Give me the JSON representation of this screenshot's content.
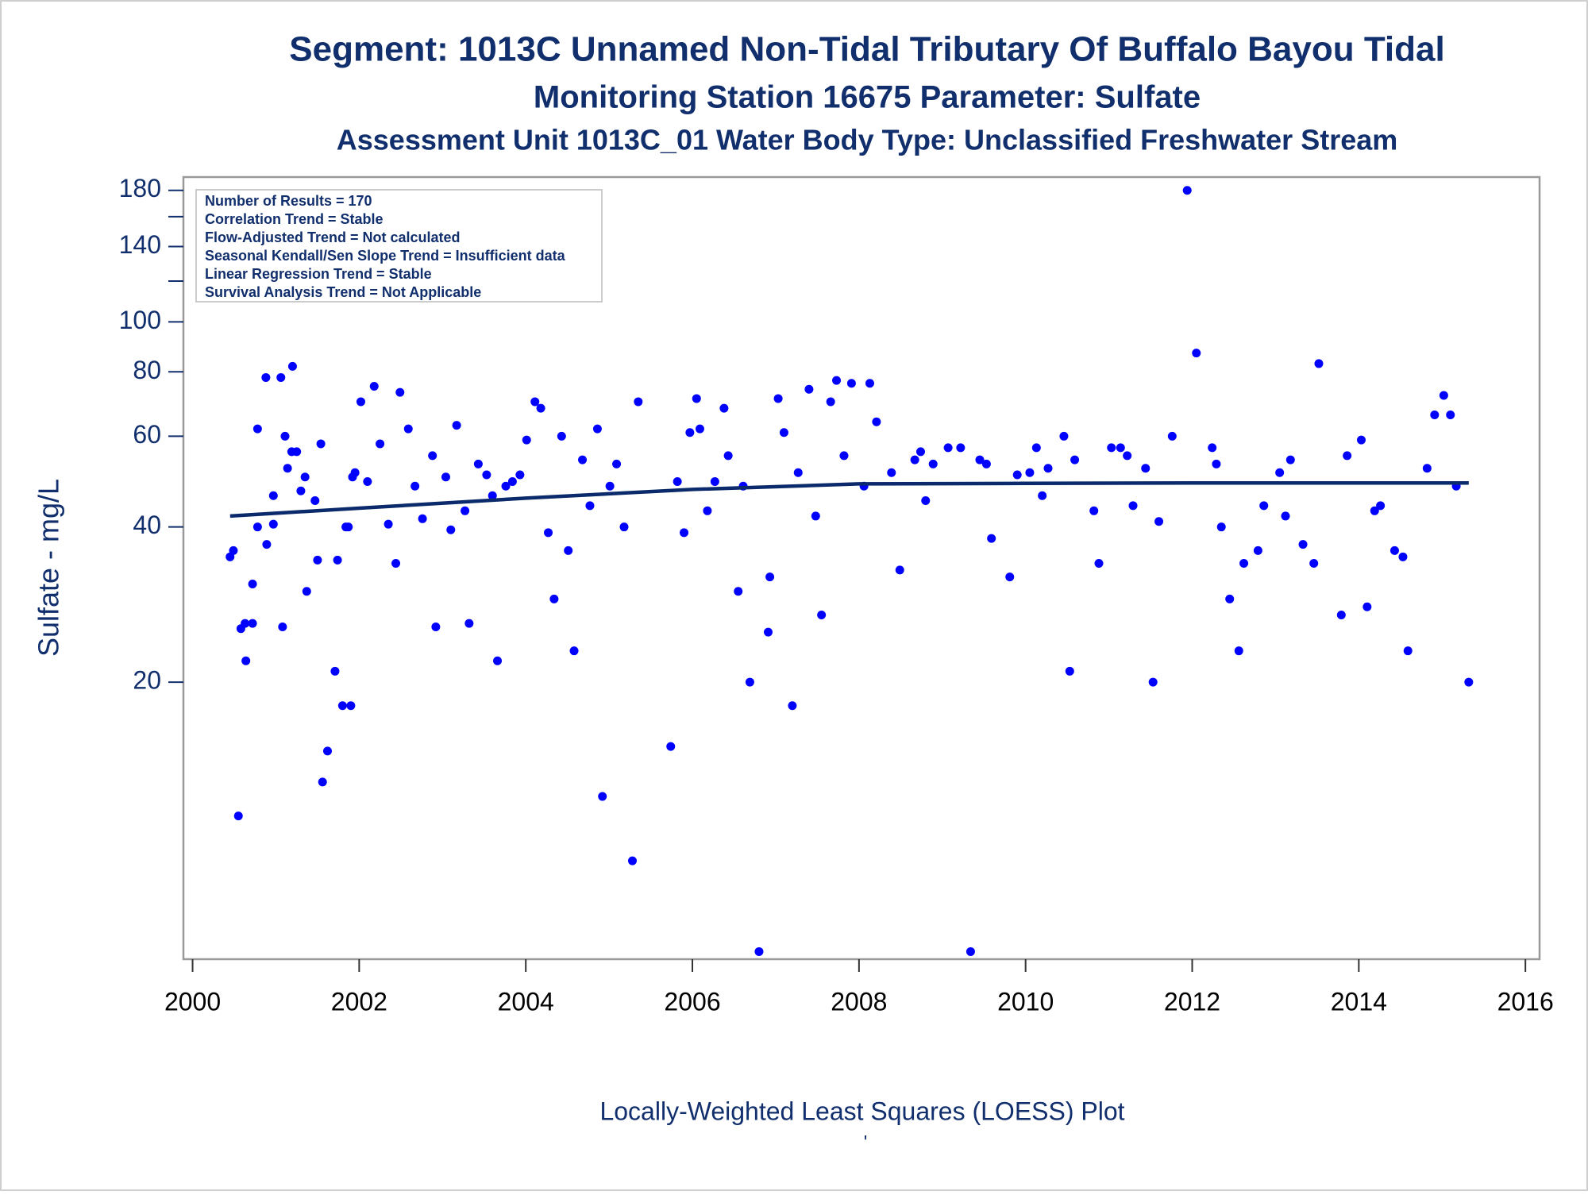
{
  "chart_data": {
    "type": "scatter",
    "title": "Segment: 1013C  Unnamed Non-Tidal Tributary Of Buffalo Bayou Tidal",
    "subtitle": "Monitoring Station 16675 Parameter: Sulfate",
    "subtitle2": "Assessment Unit 1013C_01   Water Body Type: Unclassified Freshwater Stream",
    "y_label": "Sulfate - mg/L",
    "x_label": "Locally-Weighted Least Squares (LOESS) Plot",
    "footnote": "'",
    "stats": [
      "Number of Results = 170",
      "Correlation Trend = Stable",
      "Flow-Adjusted Trend = Not calculated",
      "Seasonal Kendall/Sen Slope Trend = Insufficient data",
      "Linear Regression Trend = Stable",
      "Survival Analysis Trend = Not Applicable"
    ],
    "y_log": true,
    "xlim": [
      1999.89,
      2016.17
    ],
    "ylim": [
      5.8,
      191
    ],
    "xticks": [
      2000,
      2002,
      2004,
      2006,
      2008,
      2010,
      2012,
      2014,
      2016
    ],
    "yticks": [
      20,
      40,
      60,
      80,
      100,
      140,
      180
    ],
    "yminor_ticks": [
      120,
      160
    ],
    "series": [
      {
        "style": "points",
        "color": "#0000ff",
        "x": [
          2000.45,
          2000.49,
          2000.55,
          2000.58,
          2000.63,
          2000.64,
          2000.72,
          2000.72,
          2000.78,
          2000.78,
          2000.88,
          2000.89,
          2000.97,
          2000.97,
          2001.06,
          2001.08,
          2001.11,
          2001.14,
          2001.19,
          2001.2,
          2001.25,
          2001.3,
          2001.35,
          2001.37,
          2001.47,
          2001.5,
          2001.54,
          2001.56,
          2001.62,
          2001.71,
          2001.74,
          2001.8,
          2001.84,
          2001.87,
          2001.9,
          2001.92,
          2001.95,
          2002.02,
          2002.1,
          2002.18,
          2002.25,
          2002.35,
          2002.44,
          2002.49,
          2002.59,
          2002.67,
          2002.76,
          2002.88,
          2002.92,
          2003.04,
          2003.1,
          2003.17,
          2003.27,
          2003.32,
          2003.43,
          2003.53,
          2003.6,
          2003.66,
          2003.76,
          2003.84,
          2003.93,
          2004.01,
          2004.11,
          2004.18,
          2004.27,
          2004.34,
          2004.43,
          2004.51,
          2004.58,
          2004.68,
          2004.77,
          2004.86,
          2004.92,
          2005.01,
          2005.09,
          2005.18,
          2005.28,
          2005.35,
          2005.74,
          2005.82,
          2005.9,
          2005.97,
          2006.05,
          2006.09,
          2006.18,
          2006.27,
          2006.38,
          2006.43,
          2006.55,
          2006.61,
          2006.69,
          2006.8,
          2006.91,
          2006.93,
          2007.03,
          2007.1,
          2007.2,
          2007.27,
          2007.4,
          2007.48,
          2007.55,
          2007.66,
          2007.73,
          2007.82,
          2007.91,
          2008.06,
          2008.13,
          2008.21,
          2008.39,
          2008.49,
          2008.67,
          2008.74,
          2008.8,
          2008.89,
          2009.07,
          2009.22,
          2009.34,
          2009.45,
          2009.53,
          2009.59,
          2009.81,
          2009.9,
          2010.05,
          2010.13,
          2010.2,
          2010.27,
          2010.46,
          2010.53,
          2010.59,
          2010.82,
          2010.88,
          2011.03,
          2011.14,
          2011.22,
          2011.29,
          2011.44,
          2011.53,
          2011.6,
          2011.76,
          2011.94,
          2012.05,
          2012.24,
          2012.29,
          2012.35,
          2012.45,
          2012.56,
          2012.62,
          2012.79,
          2012.86,
          2013.05,
          2013.12,
          2013.18,
          2013.33,
          2013.46,
          2013.52,
          2013.79,
          2013.86,
          2014.03,
          2014.1,
          2014.19,
          2014.26,
          2014.43,
          2014.53,
          2014.59,
          2014.82,
          2014.91,
          2015.02,
          2015.1,
          2015.17,
          2015.32
        ],
        "values": [
          35,
          36,
          11,
          25.4,
          26,
          22,
          31,
          26,
          62,
          40,
          78,
          37,
          46,
          40.5,
          78,
          25.6,
          60,
          52,
          56,
          82,
          56,
          47,
          50,
          30,
          45,
          34.5,
          58,
          12.8,
          14.7,
          21,
          34.5,
          18,
          40,
          40,
          18,
          50,
          51,
          70,
          49,
          75,
          58,
          40.5,
          34,
          73,
          62,
          48,
          41.5,
          55,
          25.6,
          50,
          39.5,
          63,
          43,
          26,
          53,
          50.5,
          46,
          22,
          48,
          49,
          50.5,
          59,
          70,
          68,
          39,
          29,
          60,
          36,
          23,
          54,
          44,
          62,
          12,
          48,
          53,
          40,
          9,
          70,
          15,
          49,
          39,
          61,
          71,
          62,
          43,
          49,
          68,
          55,
          30,
          48,
          20,
          6,
          25,
          32,
          71,
          61,
          18,
          51,
          74,
          42,
          27,
          70,
          77,
          55,
          76,
          48,
          76,
          64,
          51,
          33,
          54,
          56,
          45,
          53,
          57,
          57,
          6,
          54,
          53,
          38,
          32,
          50.5,
          51,
          57,
          46,
          52,
          60,
          21,
          54,
          43,
          34,
          57,
          57,
          55,
          44,
          52,
          20,
          41,
          60,
          180,
          87,
          57,
          53,
          40,
          29,
          23,
          34,
          36,
          44,
          51,
          42,
          54,
          37,
          34,
          83,
          27,
          55,
          59,
          28,
          43,
          44,
          36,
          35,
          23,
          52,
          66,
          72,
          66,
          48,
          20
        ]
      },
      {
        "style": "line",
        "color": "#0b2a6b",
        "x": [
          2000.45,
          2002,
          2004,
          2006,
          2008,
          2010,
          2012,
          2015.32
        ],
        "values": [
          42,
          43.5,
          45.5,
          47.3,
          48.5,
          48.6,
          48.7,
          48.7
        ]
      }
    ]
  }
}
